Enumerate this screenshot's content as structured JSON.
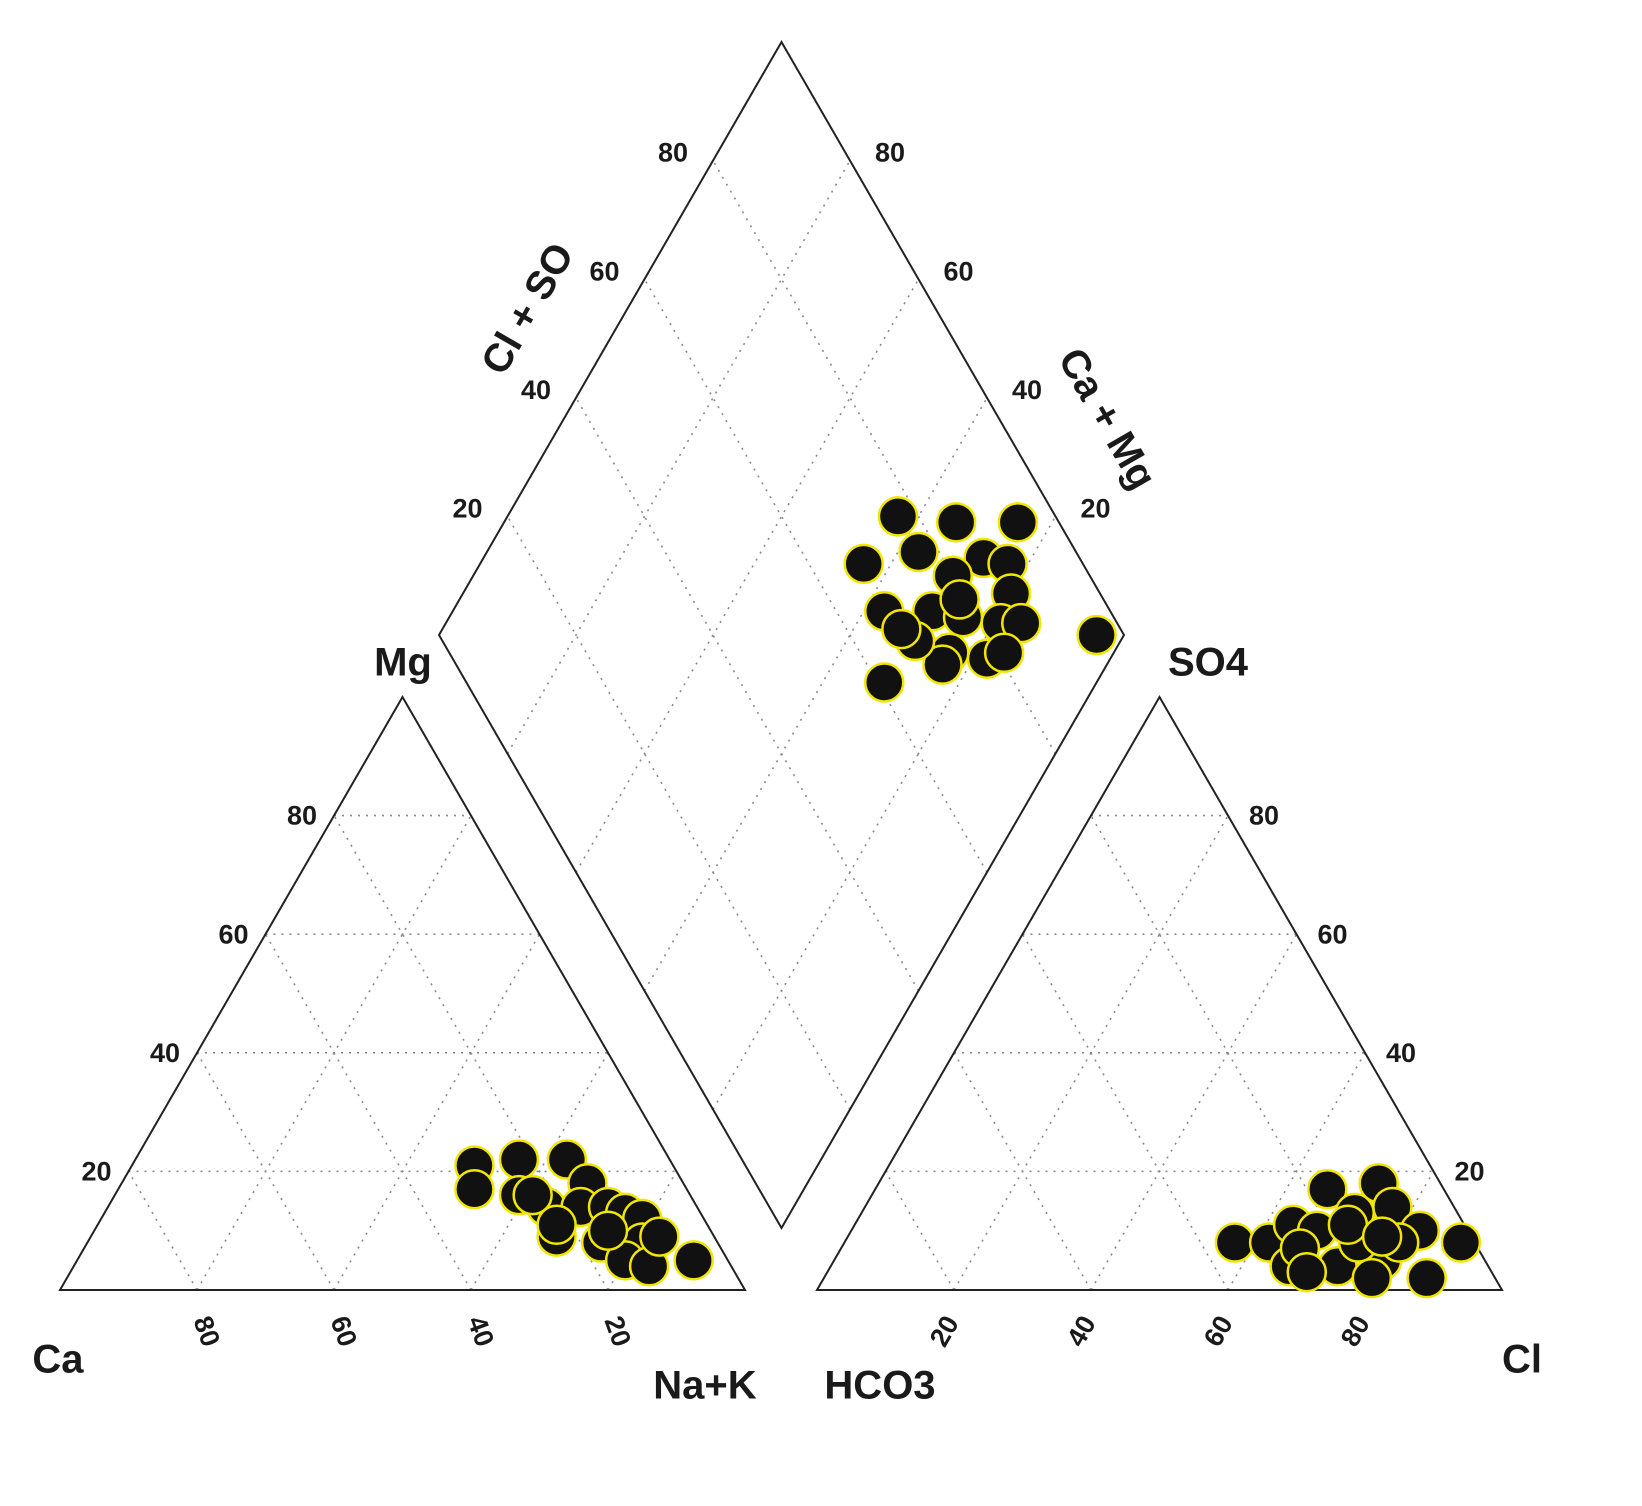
{
  "chart_data": {
    "type": "piper",
    "grid": true,
    "marker_color": "#111111",
    "marker_edge": "#f2e600",
    "edge_color": "#222222",
    "grid_color": "#8a8a8a",
    "labels": {
      "ca": "Ca",
      "mg": "Mg",
      "na_k": "Na+K",
      "hco3": "HCO3",
      "so4": "SO4",
      "cl": "Cl",
      "cl_so4": "Cl + SO",
      "ca_mg": "Ca + Mg"
    },
    "cations": {
      "mg_ticks": [
        20,
        40,
        60,
        80
      ],
      "ca_ticks": [
        20,
        40,
        60,
        80
      ],
      "mg": [
        21,
        17,
        22,
        16,
        22,
        18,
        14,
        14,
        14,
        9,
        13,
        12,
        8,
        8,
        5,
        4,
        5,
        11,
        10,
        16,
        9
      ],
      "na_k": [
        50,
        52,
        56,
        59,
        63,
        68,
        64,
        69,
        73,
        68,
        76,
        79,
        75,
        81,
        80,
        84,
        90,
        67,
        75,
        61,
        83
      ]
    },
    "anions": {
      "so4_ticks": [
        20,
        40,
        60,
        80
      ],
      "cl_ticks": [
        20,
        40,
        60,
        80
      ],
      "so4": [
        8,
        8,
        11,
        17,
        18,
        10,
        13,
        14,
        10,
        8,
        4,
        4,
        5,
        2,
        8,
        7,
        2,
        8,
        3,
        11,
        9
      ],
      "cl": [
        57,
        62,
        64,
        66,
        73,
        68,
        72,
        77,
        83,
        90,
        67,
        74,
        80,
        88,
        75,
        67,
        80,
        81,
        70,
        72,
        78
      ]
    },
    "diamond": {
      "cl_so4_ticks": [
        20,
        40,
        60,
        80
      ],
      "ca_mg_ticks": [
        20,
        40,
        60,
        80
      ],
      "cl_so4": [
        77,
        85,
        94,
        68,
        77,
        86,
        89,
        96,
        67,
        61,
        80,
        87,
        74,
        78,
        83,
        86,
        73,
        78,
        71,
        69,
        68,
        81,
        79
      ],
      "ca_mg": [
        43,
        34,
        25,
        44,
        37,
        27,
        23,
        4,
        37,
        31,
        30,
        20,
        30,
        25,
        19,
        16,
        24,
        18,
        24,
        30,
        33,
        16,
        27
      ]
    }
  }
}
